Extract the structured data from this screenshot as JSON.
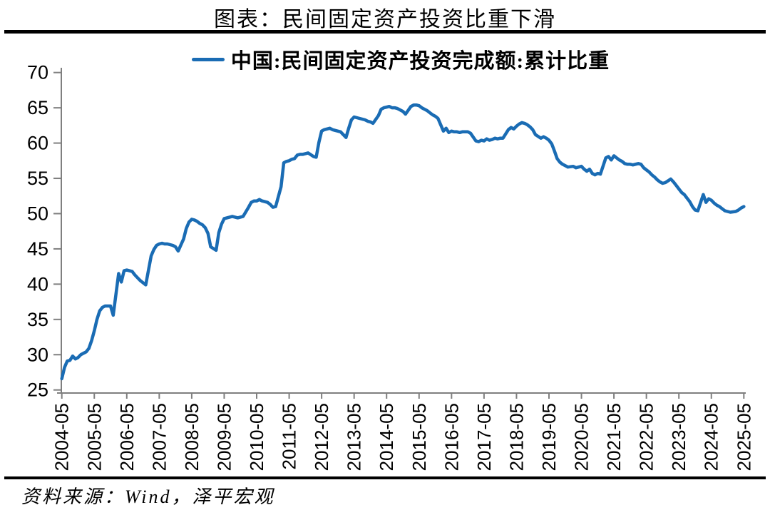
{
  "page": {
    "title": "图表：民间固定资产投资比重下滑",
    "source": "资料来源：Wind，泽平宏观"
  },
  "legend": {
    "label": "中国:民间固定资产投资完成额:累计比重"
  },
  "colors": {
    "line": "#1a6cb4",
    "axis": "#7f7f7f",
    "text": "#000000",
    "rule": "#000000"
  },
  "chart_data": {
    "type": "line",
    "title": "图表：民间固定资产投资比重下滑",
    "series_name": "中国:民间固定资产投资完成额:累计比重",
    "legend_position": "top",
    "grid": false,
    "unit": "%",
    "ylim": [
      25,
      70
    ],
    "y_ticks": [
      25,
      30,
      35,
      40,
      45,
      50,
      55,
      60,
      65,
      70
    ],
    "x_tick_labels": [
      "2004-05",
      "2005-05",
      "2006-05",
      "2007-05",
      "2008-05",
      "2009-05",
      "2010-05",
      "2011-05",
      "2012-05",
      "2013-05",
      "2014-05",
      "2015-05",
      "2016-05",
      "2017-05",
      "2018-05",
      "2019-05",
      "2020-05",
      "2021-05",
      "2022-05",
      "2023-05",
      "2024-05",
      "2025-05"
    ],
    "x": [
      "2004-05",
      "2004-06",
      "2004-07",
      "2004-08",
      "2004-09",
      "2004-10",
      "2004-11",
      "2004-12",
      "2005-02",
      "2005-03",
      "2005-04",
      "2005-05",
      "2005-06",
      "2005-07",
      "2005-08",
      "2005-09",
      "2005-10",
      "2005-11",
      "2005-12",
      "2006-02",
      "2006-03",
      "2006-04",
      "2006-05",
      "2006-06",
      "2006-07",
      "2006-08",
      "2006-09",
      "2006-10",
      "2006-11",
      "2006-12",
      "2007-02",
      "2007-03",
      "2007-04",
      "2007-05",
      "2007-06",
      "2007-07",
      "2007-08",
      "2007-09",
      "2007-10",
      "2007-11",
      "2007-12",
      "2008-02",
      "2008-03",
      "2008-04",
      "2008-05",
      "2008-06",
      "2008-07",
      "2008-08",
      "2008-09",
      "2008-10",
      "2008-11",
      "2008-12",
      "2009-02",
      "2009-03",
      "2009-04",
      "2009-05",
      "2009-06",
      "2009-07",
      "2009-08",
      "2009-09",
      "2009-10",
      "2009-11",
      "2009-12",
      "2010-02",
      "2010-03",
      "2010-04",
      "2010-05",
      "2010-06",
      "2010-07",
      "2010-08",
      "2010-09",
      "2010-10",
      "2010-11",
      "2010-12",
      "2011-02",
      "2011-03",
      "2011-04",
      "2011-05",
      "2011-06",
      "2011-07",
      "2011-08",
      "2011-09",
      "2011-10",
      "2011-11",
      "2011-12",
      "2012-02",
      "2012-03",
      "2012-04",
      "2012-05",
      "2012-06",
      "2012-07",
      "2012-08",
      "2012-09",
      "2012-10",
      "2012-11",
      "2012-12",
      "2013-02",
      "2013-03",
      "2013-04",
      "2013-05",
      "2013-06",
      "2013-07",
      "2013-08",
      "2013-09",
      "2013-10",
      "2013-11",
      "2013-12",
      "2014-02",
      "2014-03",
      "2014-04",
      "2014-05",
      "2014-06",
      "2014-07",
      "2014-08",
      "2014-09",
      "2014-10",
      "2014-11",
      "2014-12",
      "2015-02",
      "2015-03",
      "2015-04",
      "2015-05",
      "2015-06",
      "2015-07",
      "2015-08",
      "2015-09",
      "2015-10",
      "2015-11",
      "2015-12",
      "2016-02",
      "2016-03",
      "2016-04",
      "2016-05",
      "2016-06",
      "2016-07",
      "2016-08",
      "2016-09",
      "2016-10",
      "2016-11",
      "2016-12",
      "2017-02",
      "2017-03",
      "2017-04",
      "2017-05",
      "2017-06",
      "2017-07",
      "2017-08",
      "2017-09",
      "2017-10",
      "2017-11",
      "2017-12",
      "2018-02",
      "2018-03",
      "2018-04",
      "2018-05",
      "2018-06",
      "2018-07",
      "2018-08",
      "2018-09",
      "2018-10",
      "2018-11",
      "2018-12",
      "2019-02",
      "2019-03",
      "2019-04",
      "2019-05",
      "2019-06",
      "2019-07",
      "2019-08",
      "2019-09",
      "2019-10",
      "2019-11",
      "2019-12",
      "2020-02",
      "2020-03",
      "2020-04",
      "2020-05",
      "2020-06",
      "2020-07",
      "2020-08",
      "2020-09",
      "2020-10",
      "2020-11",
      "2020-12",
      "2021-02",
      "2021-03",
      "2021-04",
      "2021-05",
      "2021-06",
      "2021-07",
      "2021-08",
      "2021-09",
      "2021-10",
      "2021-11",
      "2021-12",
      "2022-02",
      "2022-03",
      "2022-04",
      "2022-05",
      "2022-06",
      "2022-07",
      "2022-08",
      "2022-09",
      "2022-10",
      "2022-11",
      "2022-12",
      "2023-02",
      "2023-03",
      "2023-04",
      "2023-05",
      "2023-06",
      "2023-07",
      "2023-08",
      "2023-09",
      "2023-10",
      "2023-11",
      "2023-12",
      "2024-02",
      "2024-03",
      "2024-04",
      "2024-05",
      "2024-06",
      "2024-07",
      "2024-08",
      "2024-09",
      "2024-10",
      "2024-11",
      "2024-12",
      "2025-02",
      "2025-03",
      "2025-04",
      "2025-05"
    ],
    "y": [
      26.6,
      28.2,
      29.1,
      29.2,
      29.8,
      29.4,
      29.6,
      30.0,
      30.4,
      30.9,
      32.0,
      33.4,
      35.0,
      36.2,
      36.7,
      36.9,
      36.9,
      36.9,
      35.6,
      41.5,
      40.3,
      41.9,
      42.0,
      41.9,
      41.8,
      41.3,
      40.9,
      40.5,
      40.2,
      39.9,
      44.0,
      44.9,
      45.5,
      45.7,
      45.8,
      45.7,
      45.7,
      45.6,
      45.5,
      45.3,
      44.7,
      46.4,
      47.9,
      48.8,
      49.2,
      49.1,
      48.9,
      48.6,
      48.4,
      48.0,
      47.2,
      45.3,
      44.8,
      47.3,
      48.5,
      49.3,
      49.4,
      49.5,
      49.6,
      49.5,
      49.4,
      49.5,
      49.6,
      50.9,
      51.6,
      51.8,
      51.8,
      52.0,
      51.8,
      51.7,
      51.6,
      51.3,
      50.9,
      51.0,
      53.8,
      57.2,
      57.4,
      57.5,
      57.7,
      57.8,
      58.3,
      58.4,
      58.4,
      58.5,
      58.6,
      58.1,
      58.0,
      60.1,
      61.7,
      61.9,
      62.0,
      62.1,
      61.9,
      61.8,
      61.7,
      61.6,
      60.8,
      62.1,
      63.3,
      63.7,
      63.6,
      63.5,
      63.4,
      63.3,
      63.1,
      63.0,
      62.8,
      63.9,
      64.8,
      65.0,
      65.1,
      65.2,
      65.0,
      65.0,
      64.9,
      64.7,
      64.5,
      64.1,
      65.2,
      65.4,
      65.4,
      65.3,
      65.0,
      64.8,
      64.6,
      64.3,
      64.0,
      63.8,
      63.5,
      61.7,
      62.1,
      61.5,
      61.7,
      61.6,
      61.6,
      61.5,
      61.6,
      61.6,
      61.6,
      61.4,
      60.3,
      60.2,
      60.4,
      60.3,
      60.6,
      60.4,
      60.5,
      60.7,
      60.6,
      60.7,
      60.7,
      61.9,
      62.2,
      62.0,
      62.4,
      62.7,
      62.9,
      62.8,
      62.6,
      62.3,
      61.9,
      61.2,
      60.7,
      60.9,
      60.7,
      60.4,
      59.9,
      58.9,
      57.8,
      57.3,
      57.0,
      56.8,
      56.6,
      56.7,
      56.5,
      56.6,
      56.7,
      56.3,
      56.0,
      56.3,
      55.7,
      55.5,
      55.7,
      55.6,
      57.9,
      58.1,
      57.6,
      58.2,
      57.9,
      57.6,
      57.4,
      57.1,
      57.0,
      57.0,
      56.9,
      57.1,
      57.0,
      56.5,
      56.2,
      55.9,
      55.5,
      55.2,
      54.8,
      54.5,
      54.3,
      54.4,
      54.9,
      54.5,
      54.0,
      53.5,
      53.0,
      52.7,
      52.2,
      51.7,
      51.0,
      50.5,
      50.4,
      52.7,
      51.6,
      52.1,
      51.9,
      51.5,
      51.2,
      51.0,
      50.7,
      50.4,
      50.3,
      50.2,
      50.3,
      50.5,
      50.8,
      51.0
    ]
  }
}
